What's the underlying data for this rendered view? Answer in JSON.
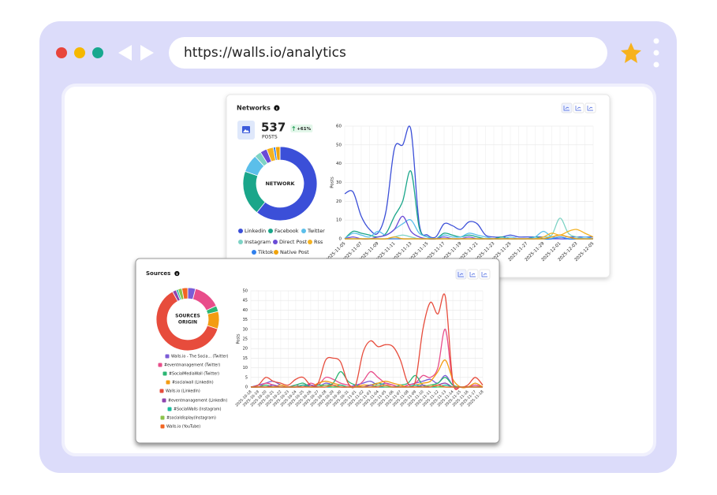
{
  "browser": {
    "url": "https://walls.io/analytics"
  },
  "chart_data": [
    {
      "type": "line",
      "title": "Networks",
      "stat": "537",
      "stat_label": "POSTS",
      "badge": "+61%",
      "center_label": [
        "NETWORK"
      ],
      "ylabel": "Posts",
      "categories": [
        "2025-11-05",
        null,
        "2025-11-07",
        null,
        "2025-11-09",
        null,
        "2025-11-11",
        null,
        "2025-11-13",
        null,
        "2025-11-15",
        null,
        "2025-11-17",
        null,
        "2025-11-19",
        null,
        "2025-11-21",
        null,
        "2025-11-23",
        null,
        "2025-11-25",
        null,
        "2025-11-27",
        null,
        "2025-11-29",
        null,
        "2025-12-01",
        null,
        "2025-12-03",
        null,
        "2025-12-05"
      ],
      "ylim": [
        0,
        60
      ],
      "yticks": [
        0,
        10,
        20,
        30,
        40,
        50,
        60
      ],
      "grid": true,
      "series": [
        {
          "name": "Linkedin",
          "color": "#3b4fd8",
          "share": 62,
          "values": [
            24,
            25,
            12,
            5,
            3,
            15,
            48,
            50,
            58,
            8,
            2,
            1,
            8,
            7,
            5,
            9,
            8,
            2,
            1,
            1,
            2,
            1,
            1,
            1,
            1,
            1,
            2,
            1,
            1,
            1,
            1
          ]
        },
        {
          "name": "Facebook",
          "color": "#1aa68a",
          "share": 20,
          "values": [
            0,
            4,
            3,
            2,
            1,
            3,
            12,
            20,
            36,
            6,
            1,
            0,
            3,
            2,
            1,
            2,
            1,
            0,
            0,
            1,
            0,
            0,
            0,
            1,
            0,
            0,
            1,
            0,
            0,
            0,
            0
          ]
        },
        {
          "name": "Twitter",
          "color": "#5bbfea",
          "share": 8,
          "values": [
            0,
            3,
            2,
            1,
            4,
            2,
            5,
            8,
            10,
            3,
            1,
            0,
            2,
            1,
            1,
            3,
            2,
            1,
            0,
            0,
            1,
            0,
            0,
            1,
            4,
            1,
            0,
            0,
            0,
            1,
            0
          ]
        },
        {
          "name": "Instagram",
          "color": "#7ed3c5",
          "share": 3,
          "values": [
            0,
            0,
            0,
            0,
            0,
            0,
            1,
            2,
            1,
            0,
            0,
            0,
            0,
            0,
            0,
            0,
            0,
            0,
            0,
            0,
            0,
            0,
            0,
            0,
            1,
            2,
            11,
            3,
            1,
            0,
            0
          ]
        },
        {
          "name": "Direct Post",
          "color": "#6a4bd6",
          "share": 3,
          "values": [
            0,
            1,
            0,
            0,
            1,
            2,
            5,
            12,
            4,
            1,
            0,
            0,
            1,
            0,
            0,
            1,
            0,
            0,
            0,
            0,
            0,
            0,
            0,
            0,
            0,
            0,
            0,
            0,
            0,
            0,
            0
          ]
        },
        {
          "name": "Rss",
          "color": "#f4b223",
          "share": 3,
          "values": [
            0,
            0,
            0,
            0,
            0,
            0,
            0,
            0,
            0,
            0,
            0,
            0,
            0,
            0,
            0,
            0,
            0,
            0,
            0,
            0,
            0,
            0,
            0,
            0,
            1,
            3,
            2,
            4,
            5,
            3,
            1
          ]
        },
        {
          "name": "Tiktok",
          "color": "#2f80ed",
          "share": 1,
          "values": [
            0,
            0,
            0,
            0,
            0,
            0,
            0,
            0,
            0,
            0,
            0,
            0,
            0,
            0,
            0,
            0,
            0,
            0,
            0,
            0,
            0,
            0,
            0,
            0,
            0,
            0,
            1,
            0,
            0,
            0,
            0
          ]
        },
        {
          "name": "Native Post",
          "color": "#f0a30a",
          "share": 2,
          "values": [
            0,
            0,
            0,
            0,
            0,
            0,
            1,
            0,
            0,
            0,
            0,
            0,
            0,
            0,
            0,
            0,
            0,
            0,
            0,
            0,
            0,
            0,
            0,
            0,
            0,
            1,
            2,
            1,
            0,
            0,
            0
          ]
        }
      ]
    },
    {
      "type": "line",
      "title": "Sources",
      "center_label": [
        "SOURCES",
        "ORIGIN"
      ],
      "ylabel": "Posts",
      "categories": [
        "2025-10-18",
        "2025-10-19",
        "2025-10-20",
        "2025-10-21",
        "2025-10-22",
        "2025-10-23",
        "2025-10-24",
        "2025-10-25",
        "2025-10-26",
        "2025-10-27",
        "2025-10-28",
        "2025-10-29",
        "2025-10-30",
        "2025-10-31",
        "2025-11-01",
        "2025-11-02",
        "2025-11-03",
        "2025-11-04",
        "2025-11-05",
        "2025-11-06",
        "2025-11-07",
        "2025-11-08",
        "2025-11-09",
        "2025-11-10",
        "2025-11-11",
        "2025-11-12",
        "2025-11-13",
        "2025-11-14",
        "2025-11-15",
        "2025-11-16",
        "2025-11-17",
        "2025-11-18"
      ],
      "ylim": [
        0,
        50
      ],
      "yticks": [
        0,
        5,
        10,
        15,
        20,
        25,
        30,
        35,
        40,
        45,
        50
      ],
      "grid": true,
      "series": [
        {
          "name": "Walls.io - The Socia... (Twitter)",
          "color": "#7b5cd6",
          "share": 4,
          "values": [
            0,
            1,
            2,
            3,
            1,
            0,
            0,
            1,
            1,
            0,
            2,
            1,
            0,
            0,
            1,
            2,
            3,
            1,
            2,
            1,
            0,
            1,
            2,
            3,
            4,
            2,
            6,
            1,
            0,
            0,
            1,
            0
          ]
        },
        {
          "name": "#eventmanagement (Twitter)",
          "color": "#e84d8a",
          "share": 14,
          "values": [
            0,
            0,
            2,
            1,
            0,
            0,
            1,
            0,
            2,
            1,
            5,
            4,
            2,
            1,
            0,
            3,
            8,
            5,
            2,
            1,
            0,
            1,
            2,
            6,
            5,
            10,
            30,
            2,
            0,
            0,
            1,
            0
          ]
        },
        {
          "name": "#SocialMediaWall (Twitter)",
          "color": "#2bb673",
          "share": 3,
          "values": [
            0,
            0,
            1,
            0,
            0,
            0,
            1,
            2,
            0,
            1,
            1,
            2,
            8,
            3,
            1,
            0,
            1,
            2,
            1,
            0,
            1,
            2,
            6,
            1,
            1,
            2,
            5,
            1,
            0,
            0,
            0,
            0
          ]
        },
        {
          "name": "#socialwall (LinkedIn)",
          "color": "#f39c12",
          "share": 9,
          "values": [
            0,
            0,
            0,
            0,
            1,
            0,
            0,
            1,
            0,
            2,
            3,
            2,
            1,
            0,
            0,
            1,
            1,
            2,
            3,
            2,
            1,
            0,
            1,
            2,
            3,
            8,
            14,
            4,
            0,
            0,
            2,
            0
          ]
        },
        {
          "name": "Walls.io (LinkedIn)",
          "color": "#e74c3c",
          "share": 62,
          "values": [
            0,
            1,
            5,
            3,
            2,
            1,
            4,
            5,
            1,
            2,
            14,
            15,
            13,
            2,
            1,
            18,
            24,
            21,
            22,
            21,
            14,
            2,
            3,
            30,
            44,
            38,
            47,
            3,
            0,
            1,
            5,
            1
          ]
        },
        {
          "name": "#eventmanagement (LinkedIn)",
          "color": "#8e44ad",
          "share": 2,
          "values": [
            0,
            0,
            0,
            1,
            0,
            0,
            0,
            0,
            1,
            0,
            1,
            0,
            0,
            0,
            0,
            0,
            1,
            0,
            0,
            0,
            0,
            0,
            0,
            1,
            0,
            1,
            2,
            0,
            0,
            0,
            0,
            0
          ]
        },
        {
          "name": "#SocialWalls (Instagram)",
          "color": "#1abc9c",
          "share": 1,
          "values": [
            0,
            0,
            0,
            0,
            0,
            0,
            0,
            1,
            0,
            0,
            0,
            0,
            1,
            0,
            0,
            0,
            0,
            0,
            0,
            0,
            0,
            0,
            1,
            0,
            0,
            0,
            1,
            0,
            0,
            0,
            0,
            0
          ]
        },
        {
          "name": "#socialdisplay(Instagram)",
          "color": "#8bc34a",
          "share": 2,
          "values": [
            0,
            0,
            0,
            0,
            0,
            0,
            0,
            0,
            0,
            0,
            1,
            0,
            0,
            0,
            0,
            0,
            0,
            1,
            0,
            0,
            0,
            0,
            0,
            0,
            1,
            0,
            0,
            0,
            0,
            0,
            0,
            0
          ]
        },
        {
          "name": "Walls.io (YouTube)",
          "color": "#f26522",
          "share": 3,
          "values": [
            0,
            0,
            0,
            0,
            0,
            0,
            0,
            0,
            0,
            0,
            0,
            1,
            0,
            0,
            0,
            0,
            0,
            0,
            1,
            0,
            0,
            0,
            0,
            0,
            0,
            1,
            0,
            0,
            0,
            0,
            0,
            0
          ]
        }
      ]
    }
  ]
}
